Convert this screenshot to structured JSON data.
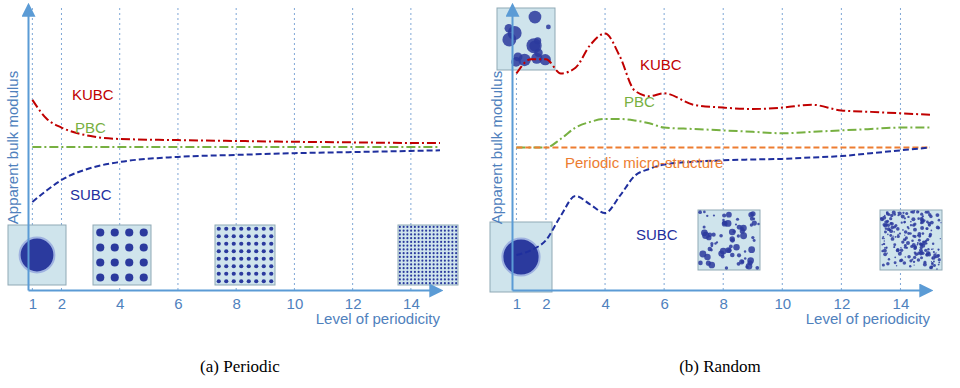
{
  "chart_data": [
    {
      "type": "line",
      "title": "(a) Periodic",
      "x_label": "Level of periodicity",
      "y_label": "Apparent bulk modulus",
      "x": [
        1,
        1.5,
        2,
        3,
        4,
        6,
        8,
        10,
        12,
        14,
        15
      ],
      "xlim": [
        0.85,
        15
      ],
      "xticks": [
        1,
        2,
        4,
        6,
        8,
        10,
        12,
        14
      ],
      "ylim": [
        0,
        10
      ],
      "yticks": [],
      "tick_labels": "x",
      "grid": "x",
      "series": [
        {
          "name": "KUBC",
          "color": "#c00000",
          "line_style": "dashdot",
          "values": [
            6.67,
            6.0,
            5.7,
            5.4,
            5.3,
            5.26,
            5.23,
            5.2,
            5.18,
            5.16,
            5.16
          ]
        },
        {
          "name": "PBC",
          "color": "#77b041",
          "line_style": "dashdot",
          "values": [
            5.02,
            5.02,
            5.02,
            5.02,
            5.02,
            5.02,
            5.02,
            5.02,
            5.02,
            5.02,
            5.02
          ]
        },
        {
          "name": "SUBC",
          "color": "#1f2f9e",
          "line_style": "dashed",
          "values": [
            3.09,
            3.5,
            3.86,
            4.28,
            4.49,
            4.67,
            4.74,
            4.8,
            4.84,
            4.88,
            4.9
          ]
        }
      ]
    },
    {
      "type": "line",
      "title": "(b) Random",
      "x_label": "Level of periodicity",
      "y_label": "Apparent bulk modulus",
      "x": [
        1,
        1.5,
        2,
        2.5,
        3,
        3.5,
        4,
        4.5,
        5,
        5.5,
        6,
        7,
        8,
        9,
        10,
        11,
        12,
        13,
        14,
        15
      ],
      "xlim": [
        0.85,
        15
      ],
      "xticks": [
        1,
        2,
        4,
        6,
        8,
        10,
        12,
        14
      ],
      "ylim": [
        0,
        10
      ],
      "yticks": [],
      "tick_labels": "x",
      "grid": "x",
      "series": [
        {
          "name": "KUBC",
          "color": "#c00000",
          "line_style": "dashdot",
          "values": [
            7.6,
            8.1,
            8.1,
            7.6,
            7.8,
            8.6,
            9.0,
            8.2,
            7.0,
            6.8,
            6.9,
            6.5,
            6.4,
            6.35,
            6.4,
            6.5,
            6.3,
            6.25,
            6.2,
            6.15
          ]
        },
        {
          "name": "PBC",
          "color": "#77b041",
          "line_style": "dashdot",
          "values": [
            5.0,
            5.0,
            5.0,
            5.3,
            5.7,
            5.9,
            6.0,
            6.0,
            5.95,
            5.85,
            5.7,
            5.65,
            5.6,
            5.55,
            5.5,
            5.55,
            5.6,
            5.65,
            5.7,
            5.7
          ]
        },
        {
          "name": "Periodic micro-structure",
          "color": "#ed7d31",
          "line_style": "dashed",
          "values": [
            5.0,
            5.0,
            5.0,
            5.0,
            5.0,
            5.0,
            5.0,
            5.0,
            5.0,
            5.0,
            5.0,
            5.0,
            5.0,
            5.0,
            5.0,
            5.0,
            5.0,
            5.0,
            5.0,
            5.0
          ]
        },
        {
          "name": "SUBC",
          "color": "#1f2f9e",
          "line_style": "dashed",
          "values": [
            1.23,
            1.4,
            1.75,
            2.6,
            3.3,
            3.0,
            2.7,
            3.3,
            4.0,
            4.25,
            4.4,
            4.5,
            4.55,
            4.58,
            4.6,
            4.65,
            4.7,
            4.8,
            4.9,
            5.0
          ]
        }
      ]
    }
  ]
}
